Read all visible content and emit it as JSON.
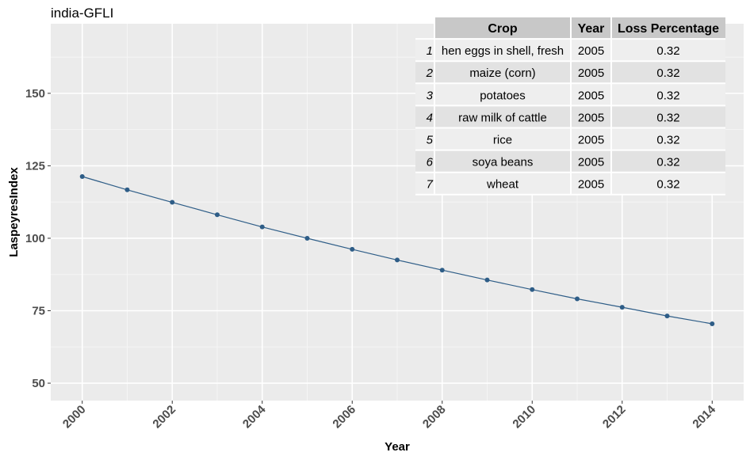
{
  "chart_data": {
    "type": "line",
    "title": "india-GFLI",
    "xlabel": "Year",
    "ylabel": "LaspeyresIndex",
    "x": [
      2000,
      2001,
      2002,
      2003,
      2004,
      2005,
      2006,
      2007,
      2008,
      2009,
      2010,
      2011,
      2012,
      2013,
      2014
    ],
    "series": [
      {
        "values": [
          121.3,
          116.7,
          112.4,
          108.1,
          103.9,
          100.0,
          96.2,
          92.5,
          89.0,
          85.6,
          82.3,
          79.1,
          76.2,
          73.2,
          70.5
        ]
      }
    ],
    "xlim": [
      1999.3,
      2014.7
    ],
    "ylim": [
      44,
      174
    ],
    "x_ticks": [
      2000,
      2002,
      2004,
      2006,
      2008,
      2010,
      2012,
      2014
    ],
    "y_ticks": [
      50,
      75,
      100,
      125,
      150
    ],
    "grid": true,
    "line_color": "#2e5d87",
    "point_color": "#2e5d87",
    "panel_background": "#ebebeb",
    "table": {
      "columns": [
        "Crop",
        "Year",
        "Loss Percentage"
      ],
      "rows": [
        {
          "index": "1",
          "crop": "hen eggs in shell, fresh",
          "year": "2005",
          "loss": "0.32"
        },
        {
          "index": "2",
          "crop": "maize (corn)",
          "year": "2005",
          "loss": "0.32"
        },
        {
          "index": "3",
          "crop": "potatoes",
          "year": "2005",
          "loss": "0.32"
        },
        {
          "index": "4",
          "crop": "raw milk of cattle",
          "year": "2005",
          "loss": "0.32"
        },
        {
          "index": "5",
          "crop": "rice",
          "year": "2005",
          "loss": "0.32"
        },
        {
          "index": "6",
          "crop": "soya beans",
          "year": "2005",
          "loss": "0.32"
        },
        {
          "index": "7",
          "crop": "wheat",
          "year": "2005",
          "loss": "0.32"
        }
      ],
      "header_color": "#c8c8c8",
      "row_colors": [
        "#eeeeee",
        "#e2e2e2"
      ]
    }
  }
}
